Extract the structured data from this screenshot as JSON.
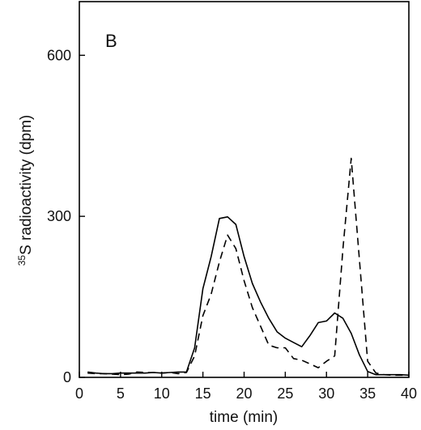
{
  "chart_data": {
    "type": "line",
    "panel_label": "B",
    "xlabel": "time (min)",
    "ylabel_superscript": "35",
    "ylabel_rest": "S radioactivity (dpm)",
    "xlim": [
      0,
      40
    ],
    "ylim": [
      0,
      700
    ],
    "x_ticks": [
      0,
      5,
      10,
      15,
      20,
      25,
      30,
      35,
      40
    ],
    "y_ticks": [
      0,
      300,
      600
    ],
    "grid": false,
    "series": [
      {
        "style": "solid",
        "color": "#000000",
        "x": [
          1,
          2,
          3,
          4,
          5,
          6,
          7,
          8,
          9,
          10,
          11,
          12,
          13,
          14,
          15,
          16,
          17,
          18,
          19,
          20,
          21,
          22,
          23,
          24,
          25,
          26,
          27,
          28,
          29,
          30,
          31,
          32,
          33,
          34,
          35,
          36,
          37,
          38,
          39,
          40
        ],
        "y": [
          10,
          8,
          7,
          7,
          8,
          8,
          8,
          8,
          9,
          8,
          9,
          10,
          10,
          55,
          165,
          225,
          296,
          299,
          285,
          225,
          175,
          140,
          110,
          85,
          73,
          65,
          57,
          78,
          102,
          105,
          120,
          110,
          82,
          42,
          11,
          5,
          5,
          5,
          5,
          4
        ]
      },
      {
        "style": "dashed",
        "color": "#000000",
        "x": [
          1,
          2,
          3,
          4,
          5,
          6,
          7,
          8,
          9,
          10,
          11,
          12,
          13,
          14,
          15,
          16,
          17,
          18,
          19,
          20,
          21,
          22,
          23,
          24,
          25,
          26,
          27,
          28,
          29,
          30,
          31,
          32,
          33,
          34,
          35,
          36,
          37,
          38,
          39,
          40
        ],
        "y": [
          8,
          7,
          7,
          6,
          5,
          6,
          10,
          9,
          9,
          8,
          9,
          7,
          9,
          40,
          115,
          155,
          215,
          265,
          240,
          180,
          130,
          95,
          60,
          55,
          55,
          35,
          32,
          25,
          18,
          30,
          40,
          240,
          408,
          220,
          30,
          8,
          5,
          4,
          4,
          4
        ]
      }
    ]
  }
}
